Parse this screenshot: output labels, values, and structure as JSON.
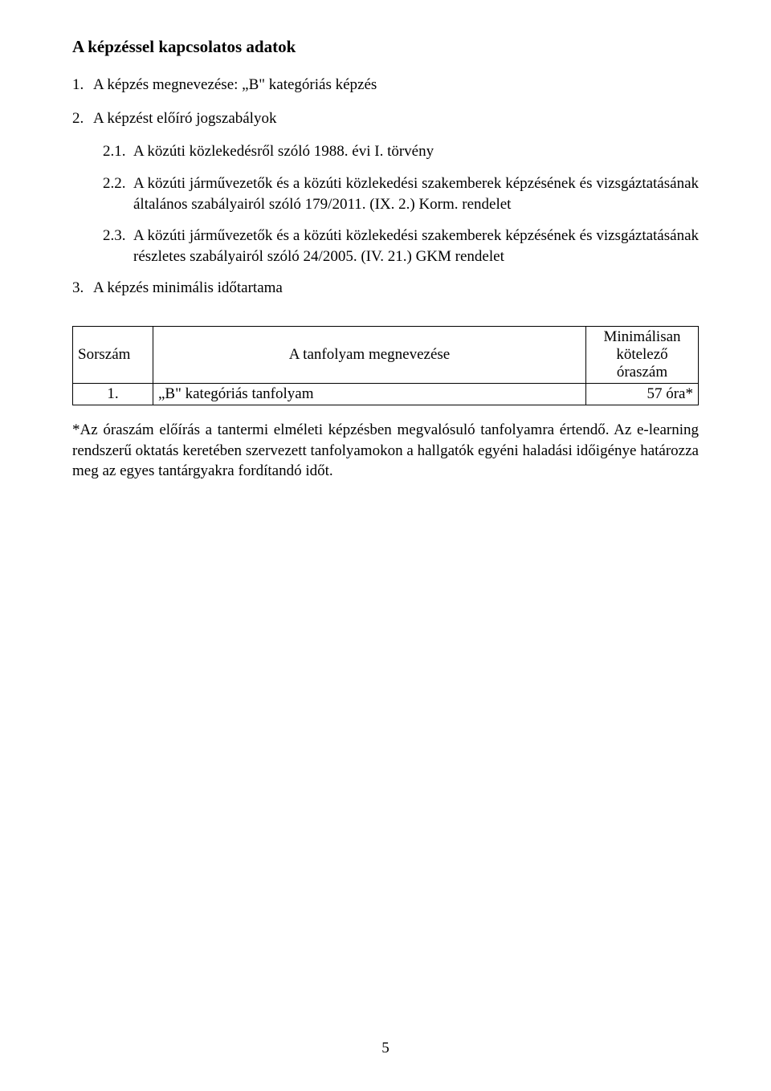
{
  "colors": {
    "background": "#ffffff",
    "text": "#000000",
    "tableBorder": "#000000"
  },
  "typography": {
    "family": "Times New Roman",
    "bodySizePx": 19,
    "headingSizePx": 21,
    "headingWeight": "bold"
  },
  "heading": "A képzéssel kapcsolatos adatok",
  "items1": {
    "n1": {
      "num": "1.",
      "text": "A képzés megnevezése: „B\" kategóriás képzés"
    },
    "n2": {
      "num": "2.",
      "text": "A képzést előíró jogszabályok"
    },
    "n3": {
      "num": "3.",
      "text": "A képzés minimális időtartama"
    }
  },
  "items2": {
    "r1": {
      "num": "2.1.",
      "text": "A közúti közlekedésről szóló 1988. évi I. törvény"
    },
    "r2": {
      "num": "2.2.",
      "text": "A közúti járművezetők és a közúti közlekedési szakemberek képzésének és vizsgáztatásának általános szabályairól szóló 179/2011. (IX. 2.) Korm. rendelet"
    },
    "r3": {
      "num": "2.3.",
      "text": "A közúti járművezetők és a közúti közlekedési szakemberek képzésének és vizsgáztatásának részletes szabályairól szóló 24/2005. (IV. 21.) GKM rendelet"
    }
  },
  "table": {
    "columns": {
      "c1": "Sorszám",
      "c2": "A tanfolyam megnevezése",
      "c3": "Minimálisan kötelező óraszám"
    },
    "widths": {
      "c1": "100px",
      "c2": "auto",
      "c3": "140px"
    },
    "alignments": {
      "header_c1": "left",
      "header_c2": "center",
      "header_c3": "center",
      "body_c1": "center",
      "body_c2": "left",
      "body_c3": "right"
    },
    "rows": {
      "r1": {
        "num": "1.",
        "name": "„B\" kategóriás tanfolyam",
        "hours": "57 óra*"
      }
    }
  },
  "footnote": "*Az óraszám előírás a tantermi elméleti képzésben megvalósuló tanfolyamra értendő. Az e-learning rendszerű oktatás keretében szervezett tanfolyamokon a hallgatók egyéni haladási időigénye határozza meg az egyes tantárgyakra fordítandó időt.",
  "pageNumber": "5"
}
